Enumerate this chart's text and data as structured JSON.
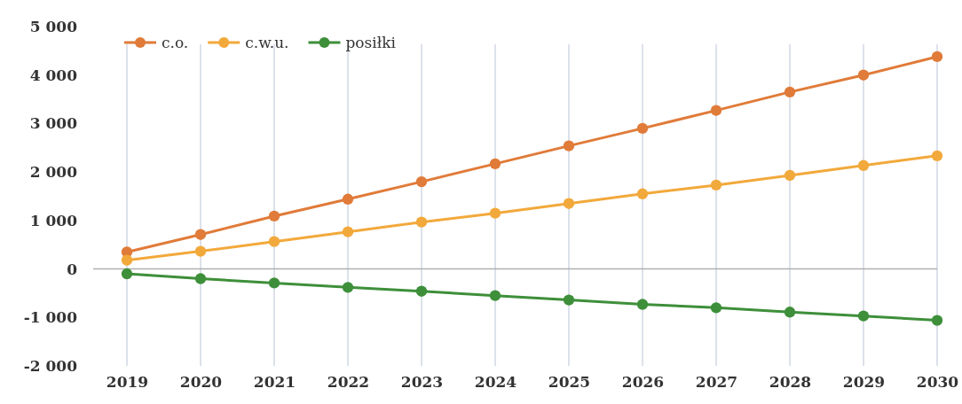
{
  "chart_data": {
    "type": "line",
    "categories": [
      "2019",
      "2020",
      "2021",
      "2022",
      "2023",
      "2024",
      "2025",
      "2026",
      "2027",
      "2028",
      "2029",
      "2030"
    ],
    "series": [
      {
        "name": "c.o.",
        "color": "#e07b39",
        "values": [
          350,
          710,
          1090,
          1440,
          1800,
          2170,
          2540,
          2900,
          3270,
          3650,
          4000,
          4380
        ]
      },
      {
        "name": "c.w.u.",
        "color": "#f2a93b",
        "values": [
          180,
          365,
          565,
          766,
          967,
          1150,
          1350,
          1550,
          1730,
          1930,
          2135,
          2335
        ]
      },
      {
        "name": "posiłki",
        "color": "#3e8f3a",
        "values": [
          -100,
          -200,
          -290,
          -380,
          -460,
          -550,
          -640,
          -730,
          -800,
          -890,
          -970,
          -1060
        ]
      }
    ],
    "ylim": [
      -2000,
      5000
    ],
    "yticks": [
      {
        "value": -2000,
        "label": "-2 000"
      },
      {
        "value": -1000,
        "label": "-1 000"
      },
      {
        "value": 0,
        "label": "0"
      },
      {
        "value": 1000,
        "label": "1 000"
      },
      {
        "value": 2000,
        "label": "2 000"
      },
      {
        "value": 3000,
        "label": "3 000"
      },
      {
        "value": 4000,
        "label": "4 000"
      },
      {
        "value": 5000,
        "label": "5 000"
      }
    ],
    "ref_lines": [
      {
        "axis": "y",
        "value": 0,
        "color": "#b0b0b0"
      }
    ],
    "grid": "x",
    "legend": "top left",
    "marker": "circle",
    "line_style": "solid"
  }
}
